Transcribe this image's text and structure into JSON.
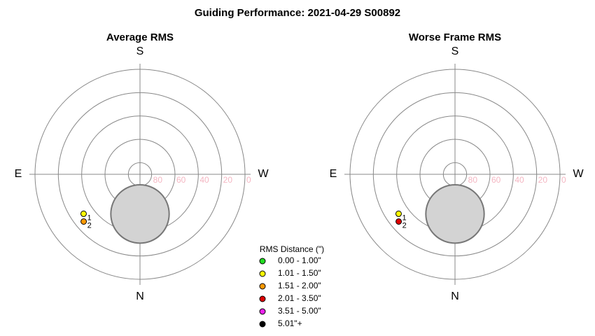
{
  "title": "Guiding Performance: 2021-04-29 S00892",
  "legend": {
    "title": "RMS Distance (\")",
    "entries": [
      {
        "label": "0.00 - 1.00\"",
        "color": "#22dd22"
      },
      {
        "label": "1.01 - 1.50\"",
        "color": "#ffff00"
      },
      {
        "label": "1.51 - 2.00\"",
        "color": "#ff9900"
      },
      {
        "label": "2.01 - 3.50\"",
        "color": "#dd0000"
      },
      {
        "label": "3.51 - 5.00\"",
        "color": "#ee22ee"
      },
      {
        "label": "5.01\"+",
        "color": "#000000"
      }
    ]
  },
  "chart_data": [
    {
      "type": "polar",
      "title": "Average RMS",
      "directions": {
        "top": "S",
        "bottom": "N",
        "left": "E",
        "right": "W"
      },
      "rlim": [
        90,
        0
      ],
      "rticks": [
        80,
        60,
        40,
        20,
        0
      ],
      "disc": {
        "alt": 56,
        "az": 0,
        "size": 25,
        "color": "#d3d3d3"
      },
      "points": [
        {
          "label": "1",
          "alt": 31,
          "az": 55,
          "color": "#ffff00"
        },
        {
          "label": "2",
          "alt": 27,
          "az": 50,
          "color": "#ff9900"
        }
      ]
    },
    {
      "type": "polar",
      "title": "Worse Frame RMS",
      "directions": {
        "top": "S",
        "bottom": "N",
        "left": "E",
        "right": "W"
      },
      "rlim": [
        90,
        0
      ],
      "rticks": [
        80,
        60,
        40,
        20,
        0
      ],
      "disc": {
        "alt": 56,
        "az": 0,
        "size": 25,
        "color": "#d3d3d3"
      },
      "points": [
        {
          "label": "1",
          "alt": 31,
          "az": 55,
          "color": "#ffff00"
        },
        {
          "label": "2",
          "alt": 27,
          "az": 50,
          "color": "#dd0000"
        }
      ]
    }
  ]
}
